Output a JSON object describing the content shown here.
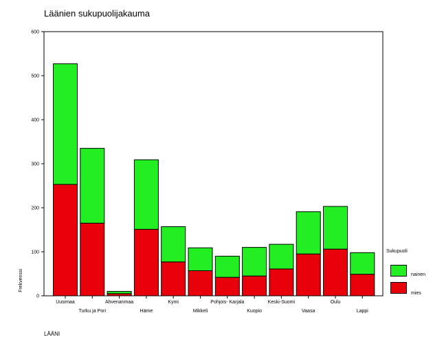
{
  "chart_data": {
    "type": "bar",
    "stacked": true,
    "title": "Läänien sukupuolijakauma",
    "xlabel": "LÄÄNI",
    "ylabel": "Frekvenssi",
    "ylim": [
      0,
      600
    ],
    "yticks": [
      0,
      100,
      200,
      300,
      400,
      500,
      600
    ],
    "grid": false,
    "legend_title": "Sukupuoli",
    "legend_position": "right-bottom",
    "categories": [
      "Uusimaa",
      "Turku ja Pori",
      "Ahvenanmaa",
      "Häme",
      "Kymi",
      "Mikkeli",
      "Pohjois- Karjala",
      "Kuopio",
      "Keski-Suomi",
      "Vaasa",
      "Oulu",
      "Lappi"
    ],
    "series": [
      {
        "name": "mies",
        "color": "#e8000b",
        "values": [
          253,
          165,
          5,
          151,
          77,
          57,
          42,
          45,
          61,
          95,
          106,
          49
        ]
      },
      {
        "name": "nainen",
        "color": "#22ee22",
        "values": [
          274,
          170,
          5,
          158,
          80,
          52,
          48,
          65,
          56,
          96,
          97,
          49
        ]
      }
    ]
  }
}
